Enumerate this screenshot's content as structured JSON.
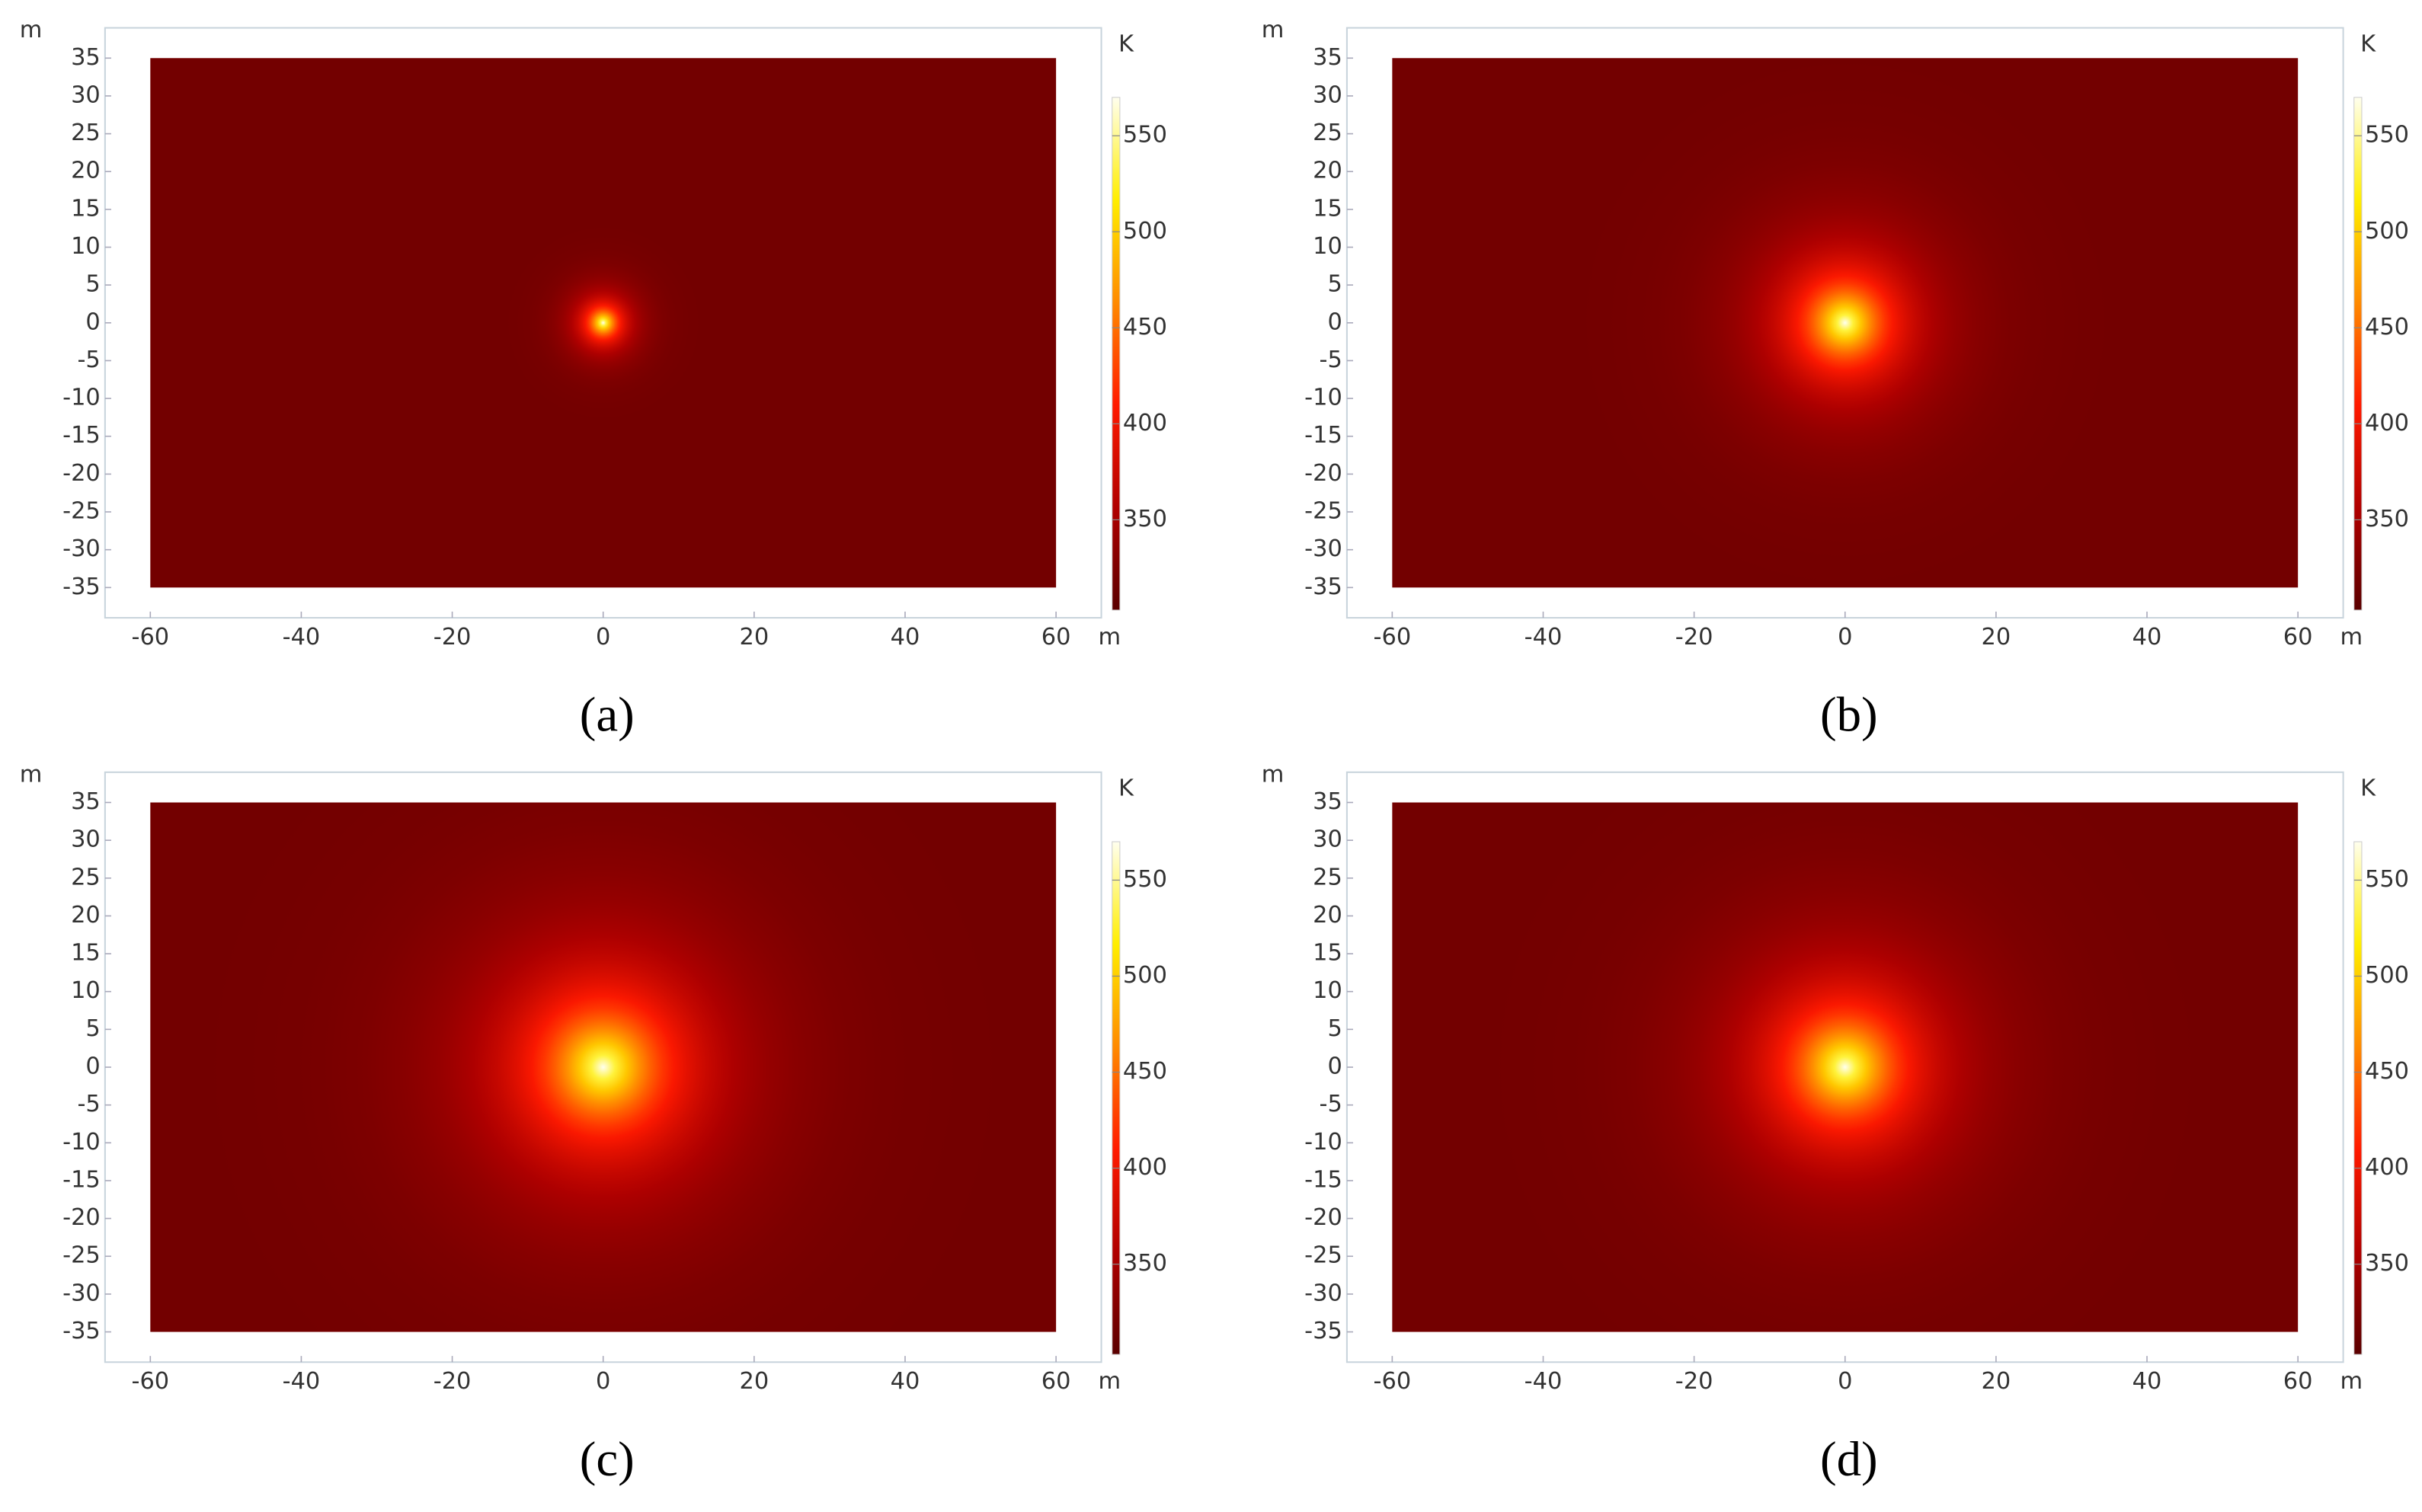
{
  "chart_data": [
    {
      "type": "heatmap",
      "caption": "(a)",
      "x_unit": "m",
      "y_unit": "m",
      "colorbar_label": "K",
      "xlim": [
        -66,
        66
      ],
      "ylim": [
        -39,
        39
      ],
      "xticks": [
        -60,
        -40,
        -20,
        0,
        20,
        40,
        60
      ],
      "yticks": [
        35,
        30,
        25,
        20,
        15,
        10,
        5,
        0,
        -5,
        -10,
        -15,
        -20,
        -25,
        -30,
        -35
      ],
      "domain": {
        "xlim": [
          -60,
          60
        ],
        "ylim": [
          -35,
          35
        ]
      },
      "field": {
        "center_x": 0,
        "center_y": 0,
        "peak": 570,
        "background": 318,
        "spread": 2.2
      },
      "colorbar_lim": [
        303,
        570
      ],
      "colorbar_ticks": [
        350,
        400,
        450,
        500,
        550
      ],
      "colormap": [
        "#5a0000",
        "#b00000",
        "#ff1a00",
        "#ff8a00",
        "#ffee00",
        "#ffffee"
      ]
    },
    {
      "type": "heatmap",
      "caption": "(b)",
      "x_unit": "m",
      "y_unit": "m",
      "colorbar_label": "K",
      "xlim": [
        -66,
        66
      ],
      "ylim": [
        -39,
        39
      ],
      "xticks": [
        -60,
        -40,
        -20,
        0,
        20,
        40,
        60
      ],
      "yticks": [
        35,
        30,
        25,
        20,
        15,
        10,
        5,
        0,
        -5,
        -10,
        -15,
        -20,
        -25,
        -30,
        -35
      ],
      "domain": {
        "xlim": [
          -60,
          60
        ],
        "ylim": [
          -35,
          35
        ]
      },
      "field": {
        "center_x": 0,
        "center_y": 0,
        "peak": 570,
        "background": 318,
        "spread": 6
      },
      "colorbar_lim": [
        303,
        570
      ],
      "colorbar_ticks": [
        350,
        400,
        450,
        500,
        550
      ],
      "colormap": [
        "#5a0000",
        "#b00000",
        "#ff1a00",
        "#ff8a00",
        "#ffee00",
        "#ffffee"
      ]
    },
    {
      "type": "heatmap",
      "caption": "(c)",
      "x_unit": "m",
      "y_unit": "m",
      "colorbar_label": "K",
      "xlim": [
        -66,
        66
      ],
      "ylim": [
        -39,
        39
      ],
      "xticks": [
        -60,
        -40,
        -20,
        0,
        20,
        40,
        60
      ],
      "yticks": [
        35,
        30,
        25,
        20,
        15,
        10,
        5,
        0,
        -5,
        -10,
        -15,
        -20,
        -25,
        -30,
        -35
      ],
      "domain": {
        "xlim": [
          -60,
          60
        ],
        "ylim": [
          -35,
          35
        ]
      },
      "field": {
        "center_x": 0,
        "center_y": 0,
        "peak": 570,
        "background": 318,
        "spread": 9
      },
      "colorbar_lim": [
        303,
        570
      ],
      "colorbar_ticks": [
        350,
        400,
        450,
        500,
        550
      ],
      "colormap": [
        "#5a0000",
        "#b00000",
        "#ff1a00",
        "#ff8a00",
        "#ffee00",
        "#ffffee"
      ]
    },
    {
      "type": "heatmap",
      "caption": "(d)",
      "x_unit": "m",
      "y_unit": "m",
      "colorbar_label": "K",
      "xlim": [
        -66,
        66
      ],
      "ylim": [
        -39,
        39
      ],
      "xticks": [
        -60,
        -40,
        -20,
        0,
        20,
        40,
        60
      ],
      "yticks": [
        35,
        30,
        25,
        20,
        15,
        10,
        5,
        0,
        -5,
        -10,
        -15,
        -20,
        -25,
        -30,
        -35
      ],
      "domain": {
        "xlim": [
          -60,
          60
        ],
        "ylim": [
          -35,
          35
        ]
      },
      "field": {
        "center_x": 0,
        "center_y": 0,
        "peak": 570,
        "background": 318,
        "spread": 8
      },
      "colorbar_lim": [
        303,
        570
      ],
      "colorbar_ticks": [
        350,
        400,
        450,
        500,
        550
      ],
      "colormap": [
        "#5a0000",
        "#b00000",
        "#ff1a00",
        "#ff8a00",
        "#ffee00",
        "#ffffee"
      ]
    }
  ]
}
